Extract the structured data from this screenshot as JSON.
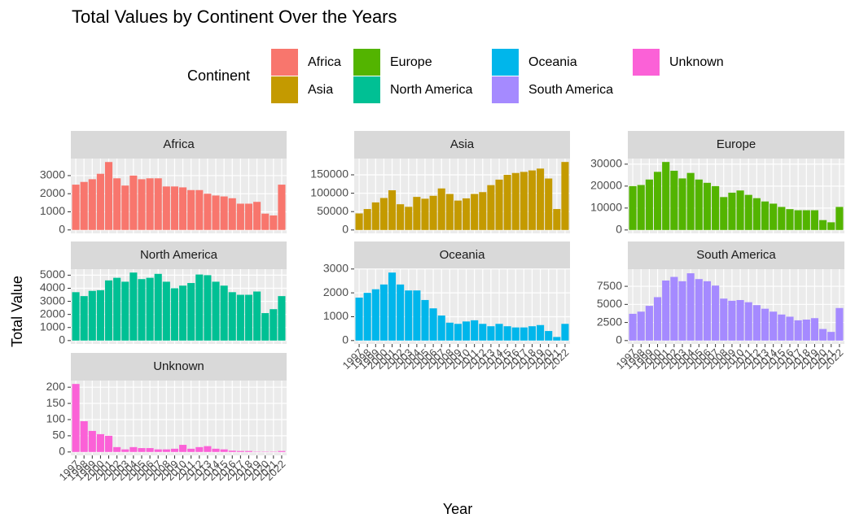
{
  "chart_data": {
    "type": "bar",
    "title": "Total Values by Continent Over the Years",
    "x_label": "Year",
    "y_label": "Total Value",
    "legend_title": "Continent",
    "grid": true,
    "categories": [
      "1997",
      "1998",
      "1999",
      "2000",
      "2001",
      "2002",
      "2003",
      "2004",
      "2005",
      "2006",
      "2007",
      "2008",
      "2009",
      "2010",
      "2011",
      "2012",
      "2013",
      "2014",
      "2015",
      "2016",
      "2017",
      "2018",
      "2019",
      "2020",
      "2021",
      "2022"
    ],
    "series": [
      {
        "name": "Africa",
        "color": "#F8766D",
        "ylim": [
          -190,
          3940
        ],
        "yticks": [
          0,
          1000,
          2000,
          3000
        ],
        "values": [
          2500,
          2650,
          2800,
          3100,
          3750,
          2850,
          2450,
          3000,
          2800,
          2850,
          2850,
          2400,
          2400,
          2350,
          2200,
          2200,
          2000,
          1900,
          1850,
          1750,
          1450,
          1450,
          1550,
          900,
          800,
          2500
        ]
      },
      {
        "name": "Asia",
        "color": "#C49A00",
        "ylim": [
          -9250,
          194250
        ],
        "yticks": [
          0,
          50000,
          100000,
          150000
        ],
        "values": [
          45000,
          57000,
          75000,
          87000,
          108000,
          70000,
          63000,
          90000,
          85000,
          93000,
          113000,
          98000,
          80000,
          86000,
          98000,
          103000,
          122000,
          137000,
          150000,
          155000,
          158000,
          162000,
          167000,
          140000,
          57000,
          185000
        ]
      },
      {
        "name": "Europe",
        "color": "#53B400",
        "ylim": [
          -1550,
          32550
        ],
        "yticks": [
          0,
          10000,
          20000,
          30000
        ],
        "values": [
          20000,
          20500,
          23000,
          26500,
          31000,
          27000,
          23500,
          26000,
          23000,
          21500,
          20000,
          15000,
          17000,
          18000,
          16000,
          14500,
          13000,
          12000,
          10500,
          9500,
          9000,
          9000,
          9000,
          4500,
          3500,
          10500
        ]
      },
      {
        "name": "North America",
        "color": "#00C094",
        "ylim": [
          -260,
          5460
        ],
        "yticks": [
          0,
          1000,
          2000,
          3000,
          4000,
          5000
        ],
        "values": [
          3700,
          3400,
          3800,
          3850,
          4600,
          4800,
          4500,
          5200,
          4700,
          4800,
          5100,
          4500,
          4000,
          4200,
          4400,
          5050,
          5000,
          4500,
          4200,
          3700,
          3500,
          3500,
          3750,
          2100,
          2400,
          3400
        ]
      },
      {
        "name": "Oceania",
        "color": "#00B6EB",
        "ylim": [
          -143,
          2993
        ],
        "yticks": [
          0,
          1000,
          2000,
          3000
        ],
        "values": [
          1800,
          2000,
          2150,
          2350,
          2850,
          2350,
          2100,
          2100,
          1700,
          1350,
          1050,
          750,
          700,
          800,
          850,
          700,
          600,
          700,
          600,
          550,
          550,
          600,
          650,
          400,
          150,
          700
        ]
      },
      {
        "name": "South America",
        "color": "#A58AFF",
        "ylim": [
          -470,
          9870
        ],
        "yticks": [
          0,
          2500,
          5000,
          7500
        ],
        "values": [
          3700,
          4000,
          4800,
          6000,
          8300,
          8800,
          8200,
          9300,
          8500,
          8200,
          7600,
          5800,
          5500,
          5600,
          5300,
          4900,
          4400,
          4000,
          3600,
          3300,
          2800,
          2900,
          3100,
          1600,
          1200,
          4500
        ]
      },
      {
        "name": "Unknown",
        "color": "#FB61D7",
        "ylim": [
          -10.5,
          220.5
        ],
        "yticks": [
          0,
          50,
          100,
          150,
          200
        ],
        "values": [
          210,
          95,
          65,
          55,
          50,
          15,
          8,
          15,
          12,
          12,
          8,
          8,
          10,
          22,
          10,
          15,
          18,
          10,
          8,
          4,
          3,
          3,
          1,
          1,
          1,
          3
        ]
      }
    ]
  }
}
